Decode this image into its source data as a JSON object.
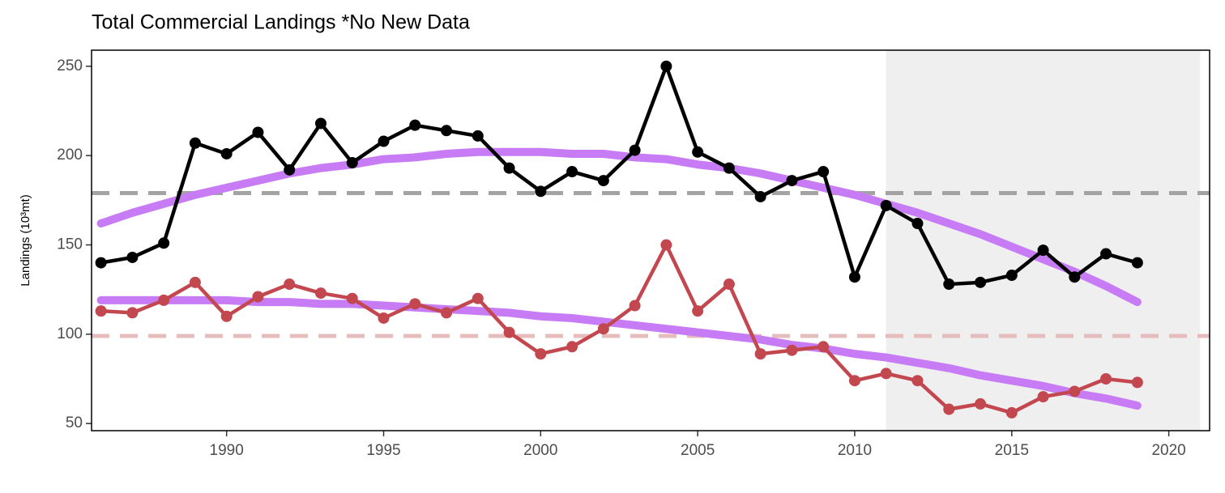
{
  "chart_data": {
    "type": "line",
    "title": "Total Commercial Landings *No New Data",
    "y_label": "Landings (10³mt)",
    "x": [
      1986,
      1987,
      1988,
      1989,
      1990,
      1991,
      1992,
      1993,
      1994,
      1995,
      1996,
      1997,
      1998,
      1999,
      2000,
      2001,
      2002,
      2003,
      2004,
      2005,
      2006,
      2007,
      2008,
      2009,
      2010,
      2011,
      2012,
      2013,
      2014,
      2015,
      2016,
      2017,
      2018,
      2019
    ],
    "series": [
      {
        "color": "#000000",
        "values": [
          140,
          143,
          151,
          207,
          201,
          213,
          192,
          218,
          196,
          208,
          217,
          214,
          211,
          193,
          180,
          191,
          186,
          203,
          250,
          202,
          193,
          177,
          186,
          191,
          132,
          172,
          162,
          128,
          129,
          133,
          147,
          132,
          145,
          140
        ]
      },
      {
        "color": "#c3474f",
        "values": [
          113,
          112,
          119,
          129,
          110,
          121,
          128,
          123,
          120,
          109,
          117,
          112,
          120,
          101,
          89,
          93,
          103,
          116,
          150,
          113,
          128,
          89,
          91,
          93,
          74,
          78,
          74,
          58,
          61,
          56,
          65,
          68,
          75,
          73
        ]
      }
    ],
    "trend": [
      {
        "color": "#c77cf5",
        "values": [
          162,
          168,
          173,
          178,
          182,
          186,
          190,
          193,
          195,
          198,
          199,
          201,
          202,
          202,
          202,
          201,
          201,
          199,
          198,
          195,
          193,
          190,
          186,
          182,
          178,
          173,
          168,
          162,
          156,
          149,
          142,
          135,
          127,
          118
        ]
      },
      {
        "color": "#c77cf5",
        "values": [
          119,
          119,
          119,
          119,
          119,
          118,
          118,
          117,
          117,
          116,
          115,
          114,
          113,
          112,
          110,
          109,
          107,
          105,
          103,
          101,
          99,
          97,
          94,
          92,
          89,
          87,
          84,
          81,
          77,
          74,
          71,
          67,
          64,
          60
        ]
      }
    ],
    "hlines": [
      {
        "value": 179,
        "color": "#a3a3a3"
      },
      {
        "value": 99,
        "color": "#e6bcbd"
      }
    ],
    "shade": {
      "x": [
        2011,
        2021
      ],
      "color": "#efefef"
    },
    "xlim": [
      1985.7,
      2021.3
    ],
    "ylim": [
      46,
      259
    ],
    "xticks": [
      1990,
      1995,
      2000,
      2005,
      2010,
      2015,
      2020
    ],
    "yticks": [
      50,
      100,
      150,
      200,
      250
    ]
  }
}
